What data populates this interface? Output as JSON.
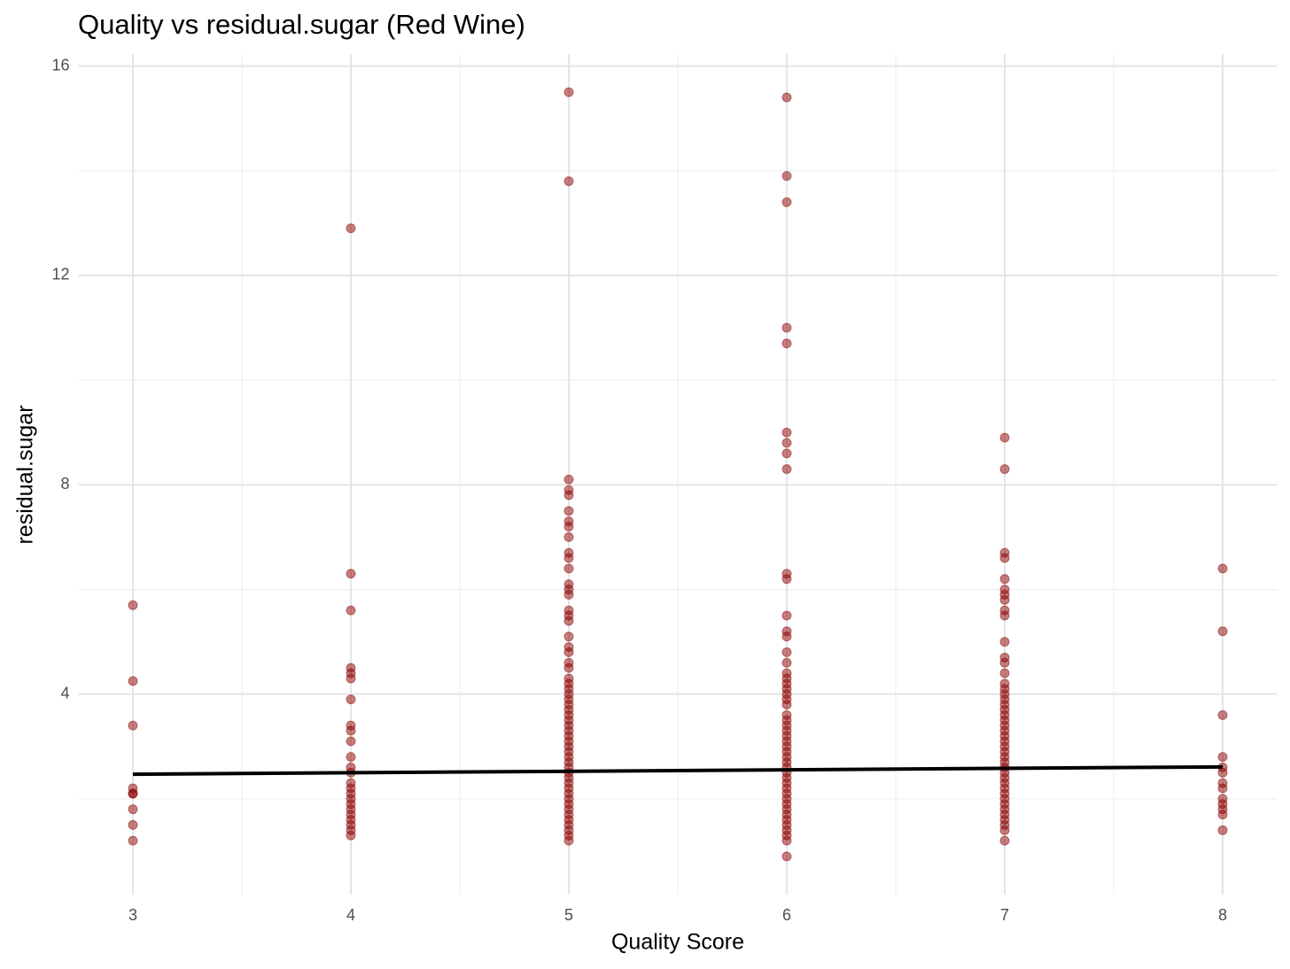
{
  "chart_data": {
    "type": "scatter",
    "title": "Quality vs residual.sugar (Red Wine)",
    "x_label": "Quality Score",
    "y_label": "residual.sugar",
    "xlim": [
      2.75,
      8.25
    ],
    "xticks": [
      3,
      4,
      5,
      6,
      7,
      8
    ],
    "x_minor_breaks": [
      3.5,
      4.5,
      5.5,
      6.5,
      7.5
    ],
    "ylim": [
      0.17,
      16.23
    ],
    "yticks": [
      4,
      8,
      12,
      16
    ],
    "y_minor_breaks": [
      2,
      6,
      10,
      14
    ],
    "grid": true,
    "color": "#8b0000",
    "alpha": 0.5,
    "groups": [
      {
        "x": 3,
        "y": [
          5.7,
          4.25,
          3.4,
          2.2,
          2.1,
          2.1,
          1.8,
          1.5,
          1.2
        ]
      },
      {
        "x": 4,
        "y": [
          12.9,
          6.3,
          5.6,
          4.5,
          4.4,
          4.3,
          3.9,
          3.4,
          3.3,
          3.1,
          2.8,
          2.6,
          2.5,
          2.3,
          2.2,
          2.1,
          2.0,
          1.9,
          1.8,
          1.7,
          1.6,
          1.5,
          1.4,
          1.3
        ]
      },
      {
        "x": 5,
        "y": [
          15.5,
          13.8,
          8.1,
          7.9,
          7.8,
          7.5,
          7.3,
          7.2,
          7.0,
          6.7,
          6.6,
          6.4,
          6.1,
          6.0,
          5.9,
          5.6,
          5.5,
          5.4,
          5.1,
          4.9,
          4.8,
          4.6,
          4.5,
          4.3,
          4.2,
          4.1,
          4.0,
          3.9,
          3.8,
          3.7,
          3.6,
          3.5,
          3.4,
          3.3,
          3.2,
          3.1,
          3.0,
          2.9,
          2.8,
          2.7,
          2.6,
          2.5,
          2.4,
          2.3,
          2.2,
          2.1,
          2.0,
          1.9,
          1.8,
          1.7,
          1.6,
          1.5,
          1.4,
          1.3,
          1.2
        ]
      },
      {
        "x": 6,
        "y": [
          15.4,
          13.9,
          13.4,
          11.0,
          10.7,
          9.0,
          8.8,
          8.6,
          8.3,
          6.3,
          6.2,
          5.5,
          5.2,
          5.1,
          4.8,
          4.6,
          4.4,
          4.3,
          4.2,
          4.1,
          4.0,
          3.9,
          3.8,
          3.6,
          3.5,
          3.4,
          3.3,
          3.2,
          3.1,
          3.0,
          2.9,
          2.8,
          2.7,
          2.6,
          2.5,
          2.4,
          2.3,
          2.2,
          2.1,
          2.0,
          1.9,
          1.8,
          1.7,
          1.6,
          1.5,
          1.4,
          1.3,
          1.2,
          0.9
        ]
      },
      {
        "x": 7,
        "y": [
          8.9,
          8.3,
          6.7,
          6.6,
          6.2,
          6.0,
          5.9,
          5.8,
          5.6,
          5.5,
          5.0,
          4.7,
          4.6,
          4.4,
          4.2,
          4.1,
          4.0,
          3.9,
          3.8,
          3.7,
          3.6,
          3.5,
          3.4,
          3.3,
          3.2,
          3.1,
          3.0,
          2.9,
          2.8,
          2.7,
          2.6,
          2.5,
          2.4,
          2.3,
          2.2,
          2.1,
          2.0,
          1.9,
          1.8,
          1.7,
          1.6,
          1.5,
          1.4,
          1.2
        ]
      },
      {
        "x": 8,
        "y": [
          6.4,
          5.2,
          3.6,
          2.8,
          2.6,
          2.5,
          2.3,
          2.2,
          2.0,
          1.9,
          1.8,
          1.7,
          1.4
        ]
      }
    ],
    "trend": {
      "color": "#000000",
      "x": [
        3,
        8
      ],
      "y": [
        2.47,
        2.61
      ]
    }
  }
}
